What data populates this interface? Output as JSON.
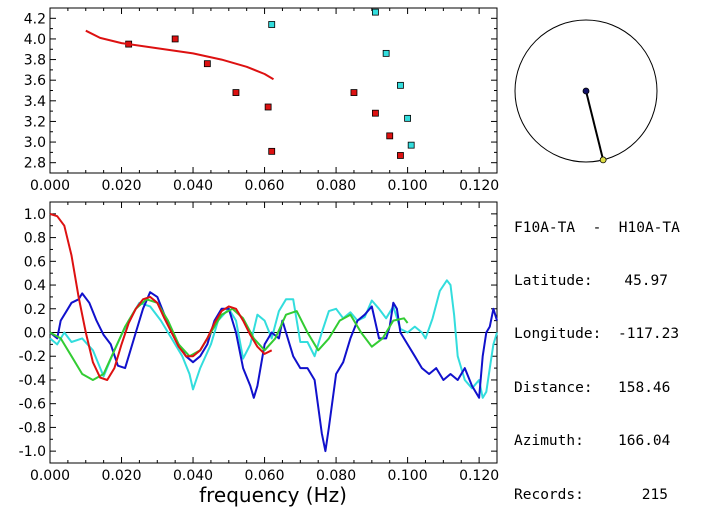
{
  "colors": {
    "red": "#dd1111",
    "cyan": "#33dddd",
    "blue": "#1111cc",
    "green": "#33cc33",
    "station": "#111166",
    "target": "#dddd44"
  },
  "info": {
    "station_pair": "F10A-TA  -  H10A-TA",
    "latitude_label": "Latitude:",
    "latitude_value": "45.97",
    "longitude_label": "Longitude:",
    "longitude_value": "-117.23",
    "distance_label": "Distance:",
    "distance_value": "158.46",
    "azimuth_label": "Azimuth:",
    "azimuth_value": "166.04",
    "records_label": "Records:",
    "records_value": "215"
  },
  "azimuth_dial": {
    "azimuth_deg": 166.04,
    "distance": 158.46
  },
  "chart_data": [
    {
      "type": "scatter",
      "title": "",
      "xlabel": "",
      "ylabel": "",
      "xlim": [
        0.0,
        0.125
      ],
      "ylim": [
        2.7,
        4.3
      ],
      "x_ticks": [
        "0.000",
        "0.020",
        "0.040",
        "0.060",
        "0.080",
        "0.100",
        "0.120"
      ],
      "y_ticks": [
        "2.8",
        "3.0",
        "3.2",
        "3.4",
        "3.6",
        "3.8",
        "4.0",
        "4.2"
      ],
      "series": [
        {
          "kind": "points",
          "color": "red",
          "points": [
            [
              0.022,
              3.95
            ],
            [
              0.035,
              4.0
            ],
            [
              0.044,
              3.76
            ],
            [
              0.052,
              3.48
            ],
            [
              0.061,
              3.34
            ],
            [
              0.062,
              2.91
            ],
            [
              0.085,
              3.48
            ],
            [
              0.091,
              3.28
            ],
            [
              0.095,
              3.06
            ],
            [
              0.098,
              2.87
            ]
          ]
        },
        {
          "kind": "points",
          "color": "cyan",
          "points": [
            [
              0.062,
              4.14
            ],
            [
              0.091,
              4.26
            ],
            [
              0.094,
              3.86
            ],
            [
              0.098,
              3.55
            ],
            [
              0.1,
              3.23
            ],
            [
              0.101,
              2.97
            ]
          ]
        },
        {
          "kind": "line",
          "color": "red",
          "points": [
            [
              0.01,
              4.08
            ],
            [
              0.014,
              4.01
            ],
            [
              0.02,
              3.96
            ],
            [
              0.03,
              3.91
            ],
            [
              0.04,
              3.86
            ],
            [
              0.048,
              3.8
            ],
            [
              0.055,
              3.73
            ],
            [
              0.06,
              3.66
            ],
            [
              0.0625,
              3.61
            ]
          ]
        }
      ]
    },
    {
      "type": "line",
      "title": "",
      "xlabel": "frequency  (Hz)",
      "ylabel": "",
      "xlim": [
        0.0,
        0.125
      ],
      "ylim": [
        -1.1,
        1.1
      ],
      "x_ticks": [
        "0.000",
        "0.020",
        "0.040",
        "0.060",
        "0.080",
        "0.100",
        "0.120"
      ],
      "y_ticks": [
        "1.0",
        "0.8",
        "0.6",
        "0.4",
        "0.2",
        "0.0",
        "-0.2",
        "-0.4",
        "-0.6",
        "-0.8",
        "-1.0"
      ],
      "zero_line": true,
      "series": [
        {
          "color": "cyan",
          "points": [
            [
              0.0,
              -0.05
            ],
            [
              0.002,
              -0.1
            ],
            [
              0.004,
              0.0
            ],
            [
              0.006,
              -0.08
            ],
            [
              0.009,
              -0.05
            ],
            [
              0.012,
              -0.15
            ],
            [
              0.015,
              -0.37
            ],
            [
              0.018,
              -0.15
            ],
            [
              0.02,
              -0.02
            ],
            [
              0.022,
              0.1
            ],
            [
              0.025,
              0.25
            ],
            [
              0.028,
              0.22
            ],
            [
              0.031,
              0.1
            ],
            [
              0.034,
              -0.05
            ],
            [
              0.037,
              -0.2
            ],
            [
              0.039,
              -0.35
            ],
            [
              0.04,
              -0.48
            ],
            [
              0.042,
              -0.3
            ],
            [
              0.045,
              -0.1
            ],
            [
              0.047,
              0.1
            ],
            [
              0.05,
              0.2
            ],
            [
              0.052,
              0.1
            ],
            [
              0.054,
              -0.22
            ],
            [
              0.056,
              -0.1
            ],
            [
              0.058,
              0.15
            ],
            [
              0.06,
              0.1
            ],
            [
              0.062,
              -0.05
            ],
            [
              0.064,
              0.18
            ],
            [
              0.066,
              0.28
            ],
            [
              0.068,
              0.28
            ],
            [
              0.07,
              -0.08
            ],
            [
              0.072,
              -0.08
            ],
            [
              0.074,
              -0.2
            ],
            [
              0.076,
              0.0
            ],
            [
              0.078,
              0.18
            ],
            [
              0.08,
              0.2
            ],
            [
              0.082,
              0.12
            ],
            [
              0.084,
              0.17
            ],
            [
              0.086,
              0.1
            ],
            [
              0.088,
              0.13
            ],
            [
              0.09,
              0.27
            ],
            [
              0.092,
              0.2
            ],
            [
              0.094,
              0.12
            ],
            [
              0.096,
              0.22
            ],
            [
              0.098,
              0.03
            ],
            [
              0.1,
              0.0
            ],
            [
              0.102,
              0.05
            ],
            [
              0.104,
              0.0
            ],
            [
              0.105,
              -0.05
            ],
            [
              0.107,
              0.12
            ],
            [
              0.109,
              0.35
            ],
            [
              0.111,
              0.44
            ],
            [
              0.112,
              0.4
            ],
            [
              0.113,
              0.15
            ],
            [
              0.114,
              -0.2
            ],
            [
              0.116,
              -0.4
            ],
            [
              0.118,
              -0.47
            ],
            [
              0.12,
              -0.4
            ],
            [
              0.121,
              -0.55
            ],
            [
              0.122,
              -0.5
            ],
            [
              0.123,
              -0.3
            ],
            [
              0.124,
              -0.1
            ],
            [
              0.125,
              0.0
            ]
          ]
        },
        {
          "color": "blue",
          "points": [
            [
              0.0,
              0.0
            ],
            [
              0.002,
              -0.05
            ],
            [
              0.003,
              0.1
            ],
            [
              0.005,
              0.2
            ],
            [
              0.006,
              0.25
            ],
            [
              0.008,
              0.28
            ],
            [
              0.009,
              0.33
            ],
            [
              0.011,
              0.25
            ],
            [
              0.013,
              0.1
            ],
            [
              0.015,
              -0.02
            ],
            [
              0.017,
              -0.1
            ],
            [
              0.019,
              -0.28
            ],
            [
              0.021,
              -0.3
            ],
            [
              0.022,
              -0.2
            ],
            [
              0.024,
              0.0
            ],
            [
              0.026,
              0.2
            ],
            [
              0.028,
              0.34
            ],
            [
              0.03,
              0.3
            ],
            [
              0.032,
              0.15
            ],
            [
              0.034,
              0.0
            ],
            [
              0.036,
              -0.1
            ],
            [
              0.038,
              -0.2
            ],
            [
              0.04,
              -0.25
            ],
            [
              0.042,
              -0.2
            ],
            [
              0.044,
              -0.1
            ],
            [
              0.046,
              0.1
            ],
            [
              0.048,
              0.2
            ],
            [
              0.05,
              0.2
            ],
            [
              0.052,
              0.0
            ],
            [
              0.054,
              -0.3
            ],
            [
              0.056,
              -0.45
            ],
            [
              0.057,
              -0.55
            ],
            [
              0.058,
              -0.45
            ],
            [
              0.06,
              -0.1
            ],
            [
              0.062,
              0.0
            ],
            [
              0.064,
              -0.05
            ],
            [
              0.065,
              0.1
            ],
            [
              0.066,
              0.0
            ],
            [
              0.068,
              -0.2
            ],
            [
              0.07,
              -0.3
            ],
            [
              0.072,
              -0.3
            ],
            [
              0.074,
              -0.4
            ],
            [
              0.076,
              -0.85
            ],
            [
              0.077,
              -1.0
            ],
            [
              0.078,
              -0.8
            ],
            [
              0.08,
              -0.35
            ],
            [
              0.082,
              -0.25
            ],
            [
              0.084,
              -0.05
            ],
            [
              0.086,
              0.1
            ],
            [
              0.088,
              0.15
            ],
            [
              0.09,
              0.22
            ],
            [
              0.092,
              -0.05
            ],
            [
              0.094,
              -0.05
            ],
            [
              0.095,
              0.05
            ],
            [
              0.096,
              0.25
            ],
            [
              0.097,
              0.2
            ],
            [
              0.098,
              0.0
            ],
            [
              0.1,
              -0.1
            ],
            [
              0.102,
              -0.2
            ],
            [
              0.104,
              -0.3
            ],
            [
              0.106,
              -0.35
            ],
            [
              0.108,
              -0.3
            ],
            [
              0.11,
              -0.4
            ],
            [
              0.112,
              -0.35
            ],
            [
              0.114,
              -0.4
            ],
            [
              0.116,
              -0.3
            ],
            [
              0.118,
              -0.45
            ],
            [
              0.12,
              -0.55
            ],
            [
              0.121,
              -0.2
            ],
            [
              0.122,
              0.0
            ],
            [
              0.123,
              0.05
            ],
            [
              0.124,
              0.2
            ],
            [
              0.125,
              0.1
            ]
          ]
        },
        {
          "color": "green",
          "points": [
            [
              0.0,
              0.0
            ],
            [
              0.003,
              -0.05
            ],
            [
              0.006,
              -0.2
            ],
            [
              0.009,
              -0.35
            ],
            [
              0.012,
              -0.4
            ],
            [
              0.015,
              -0.35
            ],
            [
              0.018,
              -0.15
            ],
            [
              0.021,
              0.05
            ],
            [
              0.024,
              0.2
            ],
            [
              0.027,
              0.28
            ],
            [
              0.03,
              0.25
            ],
            [
              0.033,
              0.1
            ],
            [
              0.036,
              -0.1
            ],
            [
              0.039,
              -0.2
            ],
            [
              0.042,
              -0.15
            ],
            [
              0.045,
              0.0
            ],
            [
              0.048,
              0.15
            ],
            [
              0.051,
              0.2
            ],
            [
              0.054,
              0.12
            ],
            [
              0.057,
              -0.05
            ],
            [
              0.06,
              -0.15
            ],
            [
              0.063,
              -0.05
            ],
            [
              0.066,
              0.15
            ],
            [
              0.069,
              0.18
            ],
            [
              0.072,
              0.0
            ],
            [
              0.075,
              -0.15
            ],
            [
              0.078,
              -0.05
            ],
            [
              0.081,
              0.1
            ],
            [
              0.084,
              0.15
            ],
            [
              0.087,
              0.0
            ],
            [
              0.09,
              -0.12
            ],
            [
              0.093,
              -0.05
            ],
            [
              0.096,
              0.1
            ],
            [
              0.099,
              0.12
            ],
            [
              0.1,
              0.08
            ]
          ]
        },
        {
          "color": "red",
          "points": [
            [
              0.0,
              1.0
            ],
            [
              0.002,
              0.98
            ],
            [
              0.004,
              0.9
            ],
            [
              0.006,
              0.65
            ],
            [
              0.008,
              0.3
            ],
            [
              0.01,
              0.0
            ],
            [
              0.012,
              -0.25
            ],
            [
              0.014,
              -0.38
            ],
            [
              0.016,
              -0.4
            ],
            [
              0.018,
              -0.3
            ],
            [
              0.02,
              -0.1
            ],
            [
              0.022,
              0.08
            ],
            [
              0.024,
              0.2
            ],
            [
              0.026,
              0.28
            ],
            [
              0.028,
              0.3
            ],
            [
              0.03,
              0.25
            ],
            [
              0.032,
              0.12
            ],
            [
              0.034,
              0.0
            ],
            [
              0.036,
              -0.12
            ],
            [
              0.038,
              -0.2
            ],
            [
              0.04,
              -0.2
            ],
            [
              0.042,
              -0.15
            ],
            [
              0.044,
              -0.05
            ],
            [
              0.046,
              0.08
            ],
            [
              0.048,
              0.18
            ],
            [
              0.05,
              0.22
            ],
            [
              0.052,
              0.2
            ],
            [
              0.054,
              0.1
            ],
            [
              0.056,
              -0.02
            ],
            [
              0.058,
              -0.12
            ],
            [
              0.06,
              -0.18
            ],
            [
              0.062,
              -0.15
            ]
          ]
        }
      ]
    }
  ]
}
